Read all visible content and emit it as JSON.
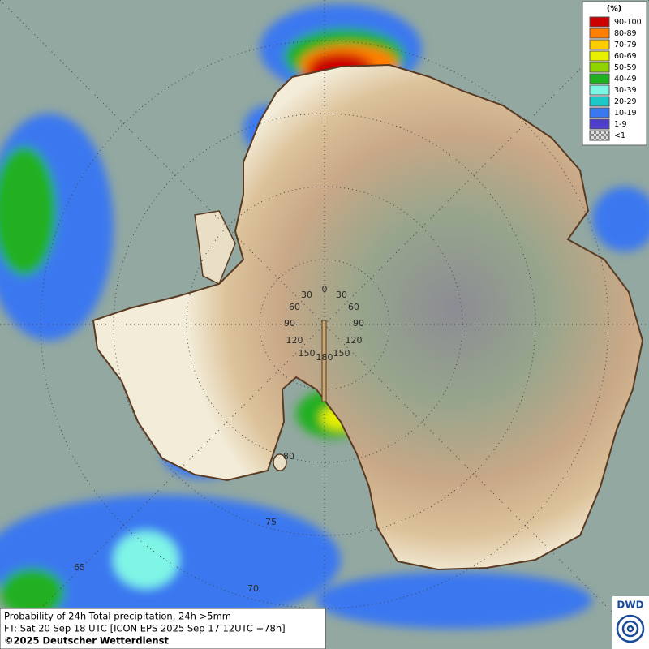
{
  "legend": {
    "title": "(%)",
    "items": [
      {
        "label": "90-100",
        "color": "#cc0000"
      },
      {
        "label": "80-89",
        "color": "#ff7f00"
      },
      {
        "label": "70-79",
        "color": "#ffcc00"
      },
      {
        "label": "60-69",
        "color": "#e6f000"
      },
      {
        "label": "50-59",
        "color": "#8fd400"
      },
      {
        "label": "40-49",
        "color": "#22b022"
      },
      {
        "label": "30-39",
        "color": "#7ff5e6"
      },
      {
        "label": "20-29",
        "color": "#1cc8c8"
      },
      {
        "label": "10-19",
        "color": "#3a78f0"
      },
      {
        "label": "1-9",
        "color": "#4d3fc8"
      },
      {
        "label": "<1",
        "color": "#bbbbbb"
      }
    ]
  },
  "graticule_labels": [
    "0",
    "30",
    "30",
    "60",
    "60",
    "90",
    "90",
    "120",
    "120",
    "150",
    "150",
    "180",
    "80",
    "75",
    "70",
    "65"
  ],
  "footer": {
    "line1": "Probability of 24h Total precipitation, 24h >5mm",
    "line2": "FT: Sat 20 Sep 18 UTC [ICON EPS 2025 Sep 17 12UTC +78h]",
    "line3": "©2025 Deutscher Wetterdienst"
  },
  "logo": "DWD"
}
